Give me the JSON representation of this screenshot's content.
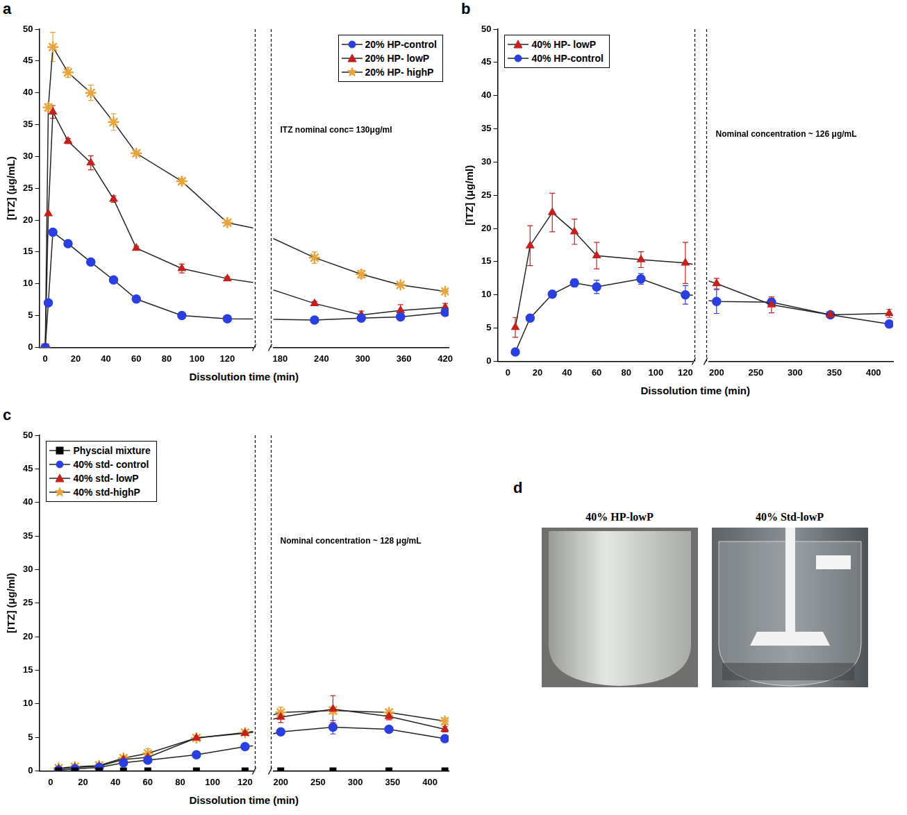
{
  "chart_data": [
    {
      "type": "line",
      "panel_label": "a",
      "xlabel": "Dissolution time (min)",
      "ylabel": "[ITZ] (μg/mL)",
      "annotation": "ITZ nominal conc= 130μg/ml",
      "legend": "upper right",
      "grid": false,
      "xlim": [
        [
          -4,
          137
        ],
        [
          170,
          425
        ]
      ],
      "xticks": [
        [
          0,
          20,
          40,
          60,
          80,
          100,
          120
        ],
        [
          180,
          240,
          300,
          360,
          420
        ]
      ],
      "ylim": [
        0,
        50
      ],
      "yticks": [
        0,
        5,
        10,
        15,
        20,
        25,
        30,
        35,
        40,
        45,
        50
      ],
      "x": [
        0,
        2,
        5,
        15,
        30,
        45,
        60,
        90,
        120,
        230,
        298,
        355,
        420
      ],
      "series": [
        {
          "name": "20% HP-control",
          "color": "#2a3fe0",
          "marker": "circle",
          "values": [
            0,
            7,
            18.1,
            16.3,
            13.4,
            10.6,
            7.6,
            5,
            4.5,
            4.3,
            4.6,
            4.8,
            5.5
          ],
          "error": [
            null,
            null,
            0.3,
            0.3,
            0.3,
            0.3,
            0.3,
            0.3,
            0.3,
            0.4,
            0.3,
            0.5,
            0.3
          ]
        },
        {
          "name": "20% HP- lowP",
          "color": "#c4201c",
          "marker": "triangle",
          "values": [
            0,
            21,
            37,
            32.4,
            29,
            23.3,
            15.6,
            12.4,
            10.8,
            6.9,
            5.1,
            5.8,
            6.3
          ],
          "error": [
            null,
            null,
            1,
            0.4,
            1.1,
            0.5,
            0.3,
            0.7,
            0.3,
            0.3,
            0.6,
            0.9,
            0.6
          ]
        },
        {
          "name": "20% HP- highP",
          "color": "#e8a33a",
          "marker": "star",
          "values": [
            0,
            37.7,
            47.2,
            43.2,
            40,
            35.4,
            30.5,
            26.1,
            19.6,
            14.1,
            11.5,
            9.8,
            8.8
          ],
          "error": [
            null,
            0.6,
            2.3,
            0.8,
            1.2,
            1.3,
            0.3,
            0.4,
            0.3,
            0.9,
            0.6,
            0.3,
            0.3
          ]
        }
      ]
    },
    {
      "type": "line",
      "panel_label": "b",
      "xlabel": "Dissolution time (min)",
      "ylabel": "[ITZ] (μg/ml)",
      "annotation": "Nominal concentration ~ 126 μg/mL",
      "legend": "upper left",
      "grid": false,
      "xlim": [
        [
          -7,
          125
        ],
        [
          190,
          425
        ]
      ],
      "xticks": [
        [
          0,
          20,
          40,
          60,
          80,
          100,
          120
        ],
        [
          200,
          250,
          300,
          350,
          400
        ]
      ],
      "ylim": [
        0,
        50
      ],
      "yticks": [
        0,
        5,
        10,
        15,
        20,
        25,
        30,
        35,
        40,
        45,
        50
      ],
      "x": [
        5,
        15,
        30,
        45,
        60,
        90,
        120,
        200,
        270,
        345,
        420
      ],
      "series": [
        {
          "name": "40% HP- lowP",
          "color": "#c4201c",
          "marker": "triangle",
          "values": [
            5.1,
            17.4,
            22.4,
            19.5,
            15.9,
            15.3,
            14.8,
            11.7,
            8.5,
            7,
            7.2
          ],
          "error": [
            1.5,
            3,
            2.9,
            1.9,
            2,
            1.2,
            3.1,
            0.8,
            1.2,
            0.4,
            0.6
          ]
        },
        {
          "name": "40% HP-control",
          "color": "#2a3fe0",
          "marker": "circle",
          "values": [
            1.4,
            6.5,
            10.1,
            11.8,
            11.2,
            12.4,
            10,
            9,
            8.9,
            7,
            5.6
          ],
          "error": [
            0.3,
            0.3,
            0.3,
            0.6,
            1,
            0.8,
            1.4,
            1.8,
            0.6,
            0.4,
            0.5
          ]
        }
      ]
    },
    {
      "type": "line",
      "panel_label": "c",
      "xlabel": "Dissolution time (min)",
      "ylabel": "[ITZ] (μg/ml)",
      "annotation": "Nominal concentration ~ 128 μg/mL",
      "legend": "upper left",
      "grid": false,
      "xlim": [
        [
          -7,
          125
        ],
        [
          190,
          425
        ]
      ],
      "xticks": [
        [
          0,
          20,
          40,
          60,
          80,
          100,
          120
        ],
        [
          200,
          250,
          300,
          350,
          400
        ]
      ],
      "ylim": [
        0,
        50
      ],
      "yticks": [
        0,
        5,
        10,
        15,
        20,
        25,
        30,
        35,
        40,
        45,
        50
      ],
      "x": [
        5,
        15,
        30,
        45,
        60,
        90,
        120,
        200,
        270,
        345,
        420
      ],
      "series": [
        {
          "name": "Physcial mixture",
          "color": "#000000",
          "marker": "square",
          "values": [
            0,
            0,
            0,
            0,
            0,
            0,
            0,
            0,
            0,
            0,
            0
          ],
          "error": [
            null,
            null,
            null,
            null,
            null,
            null,
            null,
            null,
            null,
            null,
            null
          ]
        },
        {
          "name": "40% std- control",
          "color": "#2a3fe0",
          "marker": "circle",
          "values": [
            0.1,
            0.3,
            0.5,
            1.2,
            1.6,
            2.4,
            3.6,
            5.8,
            6.5,
            6.2,
            4.8
          ],
          "error": [
            0.1,
            0.1,
            0.2,
            0.2,
            0.2,
            0.2,
            0.3,
            0.4,
            1,
            0.3,
            0.3
          ]
        },
        {
          "name": "40% std- lowP",
          "color": "#c4201c",
          "marker": "triangle",
          "values": [
            0.3,
            0.5,
            0.7,
            1.7,
            2,
            4.9,
            5.6,
            8,
            9.2,
            8.1,
            6.2
          ],
          "error": [
            0.2,
            0.2,
            0.2,
            0.3,
            0.3,
            0.3,
            0.3,
            0.8,
            2,
            0.5,
            0.4
          ]
        },
        {
          "name": "40% std-highP",
          "color": "#e8a33a",
          "marker": "star",
          "values": [
            0.4,
            0.6,
            0.8,
            1.9,
            2.6,
            4.9,
            5.7,
            8.7,
            9,
            8.7,
            7.4
          ],
          "error": [
            0.2,
            0.2,
            0.2,
            0.3,
            0.7,
            0.3,
            0.3,
            0.8,
            0.5,
            0.3,
            0.5
          ]
        }
      ]
    }
  ],
  "photos": {
    "panel_label": "d",
    "images": [
      "40% HP-lowP",
      "40% Std-lowP"
    ]
  }
}
